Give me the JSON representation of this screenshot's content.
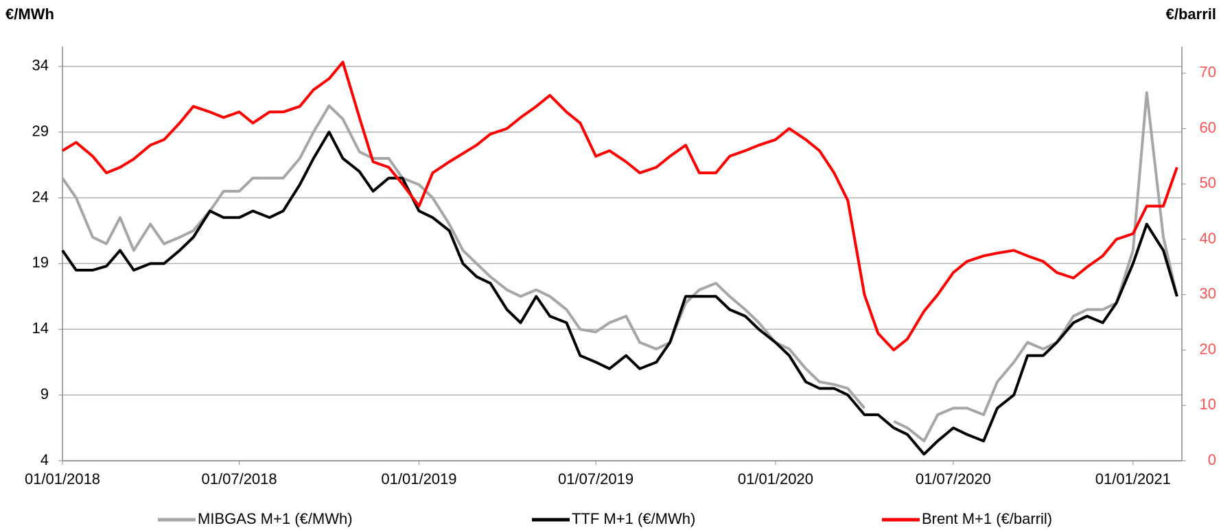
{
  "chart_data": {
    "type": "line",
    "y_label": "€/MWh",
    "y2_label": "€/barril",
    "x": [
      "01/01/2018",
      "15/01/2018",
      "01/02/2018",
      "15/02/2018",
      "01/03/2018",
      "15/03/2018",
      "01/04/2018",
      "15/04/2018",
      "01/05/2018",
      "15/05/2018",
      "01/06/2018",
      "15/06/2018",
      "01/07/2018",
      "15/07/2018",
      "01/08/2018",
      "15/08/2018",
      "01/09/2018",
      "15/09/2018",
      "01/10/2018",
      "15/10/2018",
      "01/11/2018",
      "15/11/2018",
      "01/12/2018",
      "15/12/2018",
      "01/01/2019",
      "15/01/2019",
      "01/02/2019",
      "15/02/2019",
      "01/03/2019",
      "15/03/2019",
      "01/04/2019",
      "15/04/2019",
      "01/05/2019",
      "15/05/2019",
      "01/06/2019",
      "15/06/2019",
      "01/07/2019",
      "15/07/2019",
      "01/08/2019",
      "15/08/2019",
      "01/09/2019",
      "15/09/2019",
      "01/10/2019",
      "15/10/2019",
      "01/11/2019",
      "15/11/2019",
      "01/12/2019",
      "15/12/2019",
      "01/01/2020",
      "15/01/2020",
      "01/02/2020",
      "15/02/2020",
      "01/03/2020",
      "15/03/2020",
      "01/04/2020",
      "15/04/2020",
      "01/05/2020",
      "15/05/2020",
      "01/06/2020",
      "15/06/2020",
      "01/07/2020",
      "15/07/2020",
      "01/08/2020",
      "15/08/2020",
      "01/09/2020",
      "15/09/2020",
      "01/10/2020",
      "15/10/2020",
      "01/11/2020",
      "15/11/2020",
      "01/12/2020",
      "15/12/2020",
      "01/01/2021",
      "15/01/2021",
      "01/02/2021",
      "15/02/2021"
    ],
    "xlim": [
      "01/01/2018",
      "20/02/2021"
    ],
    "xticks": [
      "01/01/2018",
      "01/07/2018",
      "01/01/2019",
      "01/07/2019",
      "01/01/2020",
      "01/07/2020",
      "01/01/2021"
    ],
    "ylim": [
      4,
      35.5
    ],
    "yticks": [
      4,
      9,
      14,
      19,
      24,
      29,
      34
    ],
    "y2lim": [
      0,
      74.8
    ],
    "y2ticks": [
      0,
      10,
      20,
      30,
      40,
      50,
      60,
      70
    ],
    "grid": true,
    "legend": "bottom",
    "series": [
      {
        "name": "MIBGAS M+1 (€/MWh)",
        "color": "#a6a6a6",
        "values": [
          25.5,
          24,
          21,
          20.5,
          22.5,
          20,
          22,
          20.5,
          21,
          21.5,
          23,
          24.5,
          24.5,
          25.5,
          25.5,
          25.5,
          27,
          29,
          31,
          30,
          27.5,
          27,
          27,
          25.5,
          25,
          24,
          22,
          20,
          19,
          18,
          17,
          16.5,
          17,
          16.5,
          15.5,
          14,
          13.8,
          14.5,
          15,
          13,
          12.5,
          13,
          16,
          17,
          17.5,
          16.5,
          15.5,
          14.5,
          13,
          12.5,
          11,
          10,
          9.8,
          9.5,
          8,
          null,
          7,
          6.5,
          5.5,
          7.5,
          8,
          8,
          7.5,
          10,
          11.5,
          13,
          12.5,
          13,
          15,
          15.5,
          15.5,
          16,
          20,
          32,
          21,
          16.5
        ]
      },
      {
        "name": "TTF M+1 (€/MWh)",
        "color": "#000000",
        "values": [
          20,
          18.5,
          18.5,
          18.8,
          20,
          18.5,
          19,
          19,
          20,
          21,
          23,
          22.5,
          22.5,
          23,
          22.5,
          23,
          25,
          27,
          29,
          27,
          26,
          24.5,
          25.5,
          25.5,
          23,
          22.5,
          21.5,
          19,
          18,
          17.5,
          15.5,
          14.5,
          16.5,
          15,
          14.5,
          12,
          11.5,
          11,
          12,
          11,
          11.5,
          13,
          16.5,
          16.5,
          16.5,
          15.5,
          15,
          14,
          13,
          12,
          10,
          9.5,
          9.5,
          9,
          7.5,
          7.5,
          6.5,
          6,
          4.5,
          5.5,
          6.5,
          6,
          5.5,
          8,
          9,
          12,
          12,
          13,
          14.5,
          15,
          14.5,
          16,
          19,
          22,
          20,
          16.5
        ]
      },
      {
        "name": "Brent M+1 (€/barril)",
        "color": "#ff0000",
        "axis": "y2",
        "values": [
          56,
          57.5,
          55,
          52,
          53,
          54.5,
          57,
          58,
          61,
          64,
          63,
          62,
          63,
          61,
          63,
          63,
          64,
          67,
          69,
          72,
          62,
          54,
          53,
          50,
          46,
          52,
          54,
          55.5,
          57,
          59,
          60,
          62,
          64,
          66,
          63,
          61,
          55,
          56,
          54,
          52,
          53,
          55,
          57,
          52,
          52,
          55,
          56,
          57,
          58,
          60,
          58,
          56,
          52,
          47,
          30,
          23,
          20,
          22,
          27,
          30,
          34,
          36,
          37,
          37.5,
          38,
          37,
          36,
          34,
          33,
          35,
          37,
          40,
          41,
          46,
          46,
          53
        ]
      }
    ]
  }
}
